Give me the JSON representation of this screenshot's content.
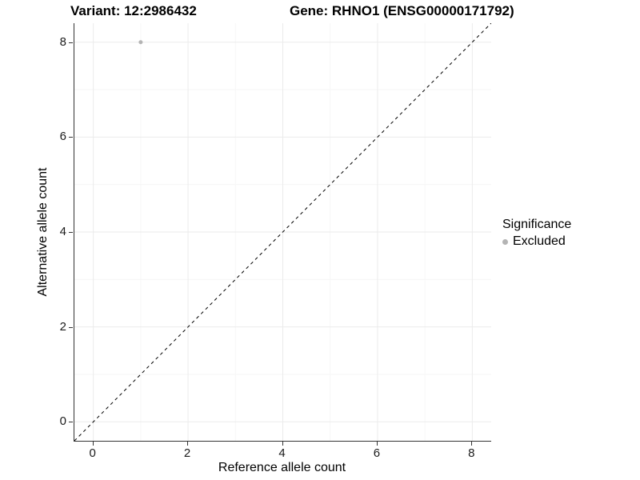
{
  "chart_data": {
    "type": "scatter",
    "title_left": "Variant: 12:2986432",
    "title_right": "Gene: RHNO1 (ENSG00000171792)",
    "xlabel": "Reference allele count",
    "ylabel": "Alternative allele count",
    "xlim": [
      -0.4,
      8.4
    ],
    "ylim": [
      -0.4,
      8.4
    ],
    "x_major_ticks": [
      0,
      2,
      4,
      6,
      8
    ],
    "x_minor_ticks": [
      1,
      3,
      5,
      7
    ],
    "y_major_ticks": [
      0,
      2,
      4,
      6,
      8
    ],
    "y_minor_ticks": [
      1,
      3,
      5,
      7
    ],
    "grid": true,
    "identity_line": {
      "style": "dashed",
      "from": [
        -0.4,
        -0.4
      ],
      "to": [
        8.4,
        8.4
      ],
      "color": "#000000"
    },
    "series": [
      {
        "name": "Excluded",
        "color": "#b4b4b4",
        "points": [
          {
            "x": 1,
            "y": 8
          }
        ]
      }
    ],
    "legend": {
      "title": "Significance",
      "position": "right",
      "items": [
        {
          "label": "Excluded",
          "color": "#b4b4b4"
        }
      ]
    },
    "colors": {
      "grid_major": "#ebebeb",
      "grid_minor": "#f6f6f6",
      "axis": "#333333",
      "tick_text": "#1a1a1a"
    }
  }
}
